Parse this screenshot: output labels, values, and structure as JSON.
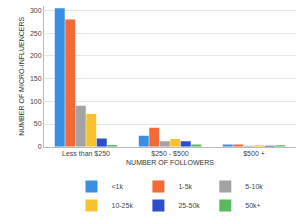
{
  "chart_data": {
    "type": "bar",
    "x_label": "NUMBER OF FOLLOWERS",
    "y_label": "NUMBER OF MICRO-INFLUENCERS",
    "categories": [
      "Less than $250",
      "$250 - $500",
      "$500 +"
    ],
    "series": [
      {
        "name": "<1k",
        "color": "#3b8fe3",
        "values": [
          305,
          24,
          5
        ]
      },
      {
        "name": "1-5k",
        "color": "#f26a36",
        "values": [
          280,
          42,
          5
        ]
      },
      {
        "name": "5-10k",
        "color": "#a3a3a3",
        "values": [
          90,
          12,
          2
        ]
      },
      {
        "name": "10-25k",
        "color": "#f8c22e",
        "values": [
          72,
          17,
          3
        ]
      },
      {
        "name": "25-50k",
        "color": "#2b4fc6",
        "values": [
          18,
          12,
          2
        ]
      },
      {
        "name": "50k+",
        "color": "#5cb85c",
        "values": [
          4,
          5,
          3
        ]
      }
    ],
    "ylim": [
      0,
      310
    ],
    "yticks": [
      0,
      50,
      100,
      150,
      200,
      250,
      300
    ],
    "grid": true,
    "legend": "bottom"
  }
}
